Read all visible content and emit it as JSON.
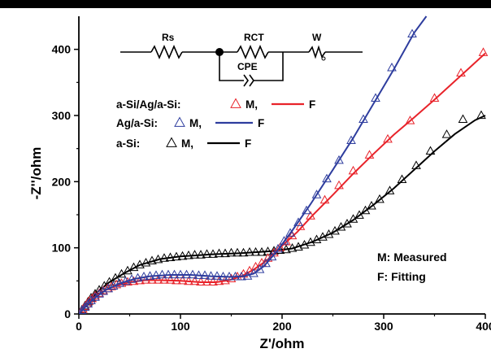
{
  "chart_data": {
    "type": "scatter",
    "xlabel": "Z'/ohm",
    "ylabel": "-Z''/ohm",
    "xlim": [
      0,
      400
    ],
    "ylim": [
      0,
      450
    ],
    "xticks": [
      0,
      100,
      200,
      300,
      400
    ],
    "yticks": [
      0,
      100,
      200,
      300,
      400
    ],
    "marker": "open-triangle",
    "series": [
      {
        "name": "a-Si/Ag/a-Si",
        "color": "#e8232a",
        "measured": [
          [
            2,
            3
          ],
          [
            4,
            7
          ],
          [
            6,
            11
          ],
          [
            8,
            15
          ],
          [
            10,
            19
          ],
          [
            13,
            23
          ],
          [
            16,
            27
          ],
          [
            20,
            31
          ],
          [
            24,
            35
          ],
          [
            28,
            38
          ],
          [
            32,
            41
          ],
          [
            37,
            44
          ],
          [
            42,
            46
          ],
          [
            48,
            48
          ],
          [
            54,
            49
          ],
          [
            60,
            50
          ],
          [
            66,
            51
          ],
          [
            72,
            51
          ],
          [
            78,
            51
          ],
          [
            84,
            51
          ],
          [
            90,
            51
          ],
          [
            96,
            50
          ],
          [
            102,
            50
          ],
          [
            108,
            49
          ],
          [
            114,
            49
          ],
          [
            120,
            48
          ],
          [
            126,
            48
          ],
          [
            132,
            48
          ],
          [
            138,
            49
          ],
          [
            144,
            50
          ],
          [
            150,
            53
          ],
          [
            156,
            56
          ],
          [
            162,
            60
          ],
          [
            168,
            65
          ],
          [
            174,
            71
          ],
          [
            180,
            77
          ],
          [
            186,
            84
          ],
          [
            192,
            92
          ],
          [
            198,
            100
          ],
          [
            204,
            109
          ],
          [
            210,
            118
          ],
          [
            218,
            132
          ],
          [
            228,
            148
          ],
          [
            242,
            172
          ],
          [
            256,
            194
          ],
          [
            270,
            216
          ],
          [
            286,
            240
          ],
          [
            304,
            264
          ],
          [
            326,
            292
          ],
          [
            350,
            326
          ],
          [
            376,
            364
          ],
          [
            398,
            395
          ]
        ],
        "fit": [
          [
            0,
            0
          ],
          [
            5,
            9
          ],
          [
            12,
            21
          ],
          [
            22,
            33
          ],
          [
            35,
            42
          ],
          [
            50,
            48
          ],
          [
            65,
            51
          ],
          [
            80,
            51
          ],
          [
            100,
            50
          ],
          [
            120,
            48
          ],
          [
            135,
            48
          ],
          [
            148,
            51
          ],
          [
            160,
            57
          ],
          [
            172,
            67
          ],
          [
            185,
            81
          ],
          [
            200,
            103
          ],
          [
            215,
            124
          ],
          [
            230,
            149
          ],
          [
            250,
            180
          ],
          [
            270,
            212
          ],
          [
            290,
            242
          ],
          [
            310,
            271
          ],
          [
            330,
            297
          ],
          [
            350,
            324
          ],
          [
            370,
            352
          ],
          [
            385,
            373
          ],
          [
            400,
            394
          ]
        ]
      },
      {
        "name": "Ag/a-Si",
        "color": "#2e3d9e",
        "measured": [
          [
            3,
            5
          ],
          [
            6,
            10
          ],
          [
            9,
            15
          ],
          [
            12,
            20
          ],
          [
            16,
            25
          ],
          [
            20,
            30
          ],
          [
            24,
            34
          ],
          [
            29,
            38
          ],
          [
            34,
            42
          ],
          [
            40,
            46
          ],
          [
            46,
            49
          ],
          [
            52,
            52
          ],
          [
            58,
            54
          ],
          [
            64,
            56
          ],
          [
            70,
            57
          ],
          [
            76,
            58
          ],
          [
            82,
            59
          ],
          [
            88,
            59
          ],
          [
            94,
            59
          ],
          [
            100,
            59
          ],
          [
            106,
            59
          ],
          [
            112,
            59
          ],
          [
            118,
            58
          ],
          [
            124,
            58
          ],
          [
            130,
            57
          ],
          [
            136,
            57
          ],
          [
            142,
            56
          ],
          [
            148,
            56
          ],
          [
            154,
            56
          ],
          [
            160,
            56
          ],
          [
            166,
            57
          ],
          [
            172,
            61
          ],
          [
            178,
            67
          ],
          [
            184,
            76
          ],
          [
            190,
            86
          ],
          [
            196,
            98
          ],
          [
            202,
            110
          ],
          [
            208,
            122
          ],
          [
            216,
            138
          ],
          [
            224,
            156
          ],
          [
            234,
            180
          ],
          [
            244,
            204
          ],
          [
            256,
            232
          ],
          [
            268,
            262
          ],
          [
            280,
            294
          ],
          [
            292,
            326
          ],
          [
            308,
            372
          ],
          [
            328,
            423
          ]
        ],
        "fit": [
          [
            0,
            0
          ],
          [
            6,
            10
          ],
          [
            14,
            22
          ],
          [
            26,
            36
          ],
          [
            40,
            46
          ],
          [
            55,
            53
          ],
          [
            70,
            57
          ],
          [
            90,
            59
          ],
          [
            110,
            59
          ],
          [
            130,
            57
          ],
          [
            150,
            56
          ],
          [
            162,
            57
          ],
          [
            172,
            61
          ],
          [
            182,
            72
          ],
          [
            195,
            95
          ],
          [
            210,
            126
          ],
          [
            228,
            166
          ],
          [
            250,
            218
          ],
          [
            270,
            266
          ],
          [
            290,
            318
          ],
          [
            310,
            370
          ],
          [
            330,
            425
          ],
          [
            342,
            450
          ]
        ]
      },
      {
        "name": "a-Si",
        "color": "#000000",
        "measured": [
          [
            3,
            6
          ],
          [
            6,
            12
          ],
          [
            9,
            18
          ],
          [
            12,
            24
          ],
          [
            16,
            30
          ],
          [
            20,
            36
          ],
          [
            25,
            42
          ],
          [
            30,
            48
          ],
          [
            36,
            54
          ],
          [
            42,
            60
          ],
          [
            48,
            65
          ],
          [
            54,
            70
          ],
          [
            60,
            74
          ],
          [
            66,
            77
          ],
          [
            72,
            80
          ],
          [
            78,
            82
          ],
          [
            84,
            84
          ],
          [
            90,
            85
          ],
          [
            96,
            86
          ],
          [
            102,
            87
          ],
          [
            108,
            88
          ],
          [
            114,
            89
          ],
          [
            120,
            89
          ],
          [
            126,
            90
          ],
          [
            132,
            90
          ],
          [
            138,
            91
          ],
          [
            144,
            91
          ],
          [
            150,
            92
          ],
          [
            156,
            92
          ],
          [
            162,
            92
          ],
          [
            168,
            93
          ],
          [
            174,
            93
          ],
          [
            180,
            93
          ],
          [
            186,
            94
          ],
          [
            192,
            95
          ],
          [
            198,
            96
          ],
          [
            204,
            97
          ],
          [
            210,
            99
          ],
          [
            216,
            101
          ],
          [
            222,
            104
          ],
          [
            228,
            108
          ],
          [
            234,
            112
          ],
          [
            240,
            116
          ],
          [
            246,
            120
          ],
          [
            252,
            125
          ],
          [
            258,
            131
          ],
          [
            264,
            136
          ],
          [
            270,
            143
          ],
          [
            276,
            149
          ],
          [
            282,
            156
          ],
          [
            288,
            163
          ],
          [
            296,
            173
          ],
          [
            306,
            186
          ],
          [
            318,
            203
          ],
          [
            332,
            224
          ],
          [
            346,
            246
          ],
          [
            362,
            271
          ],
          [
            378,
            294
          ],
          [
            396,
            300
          ]
        ],
        "fit": [
          [
            0,
            0
          ],
          [
            8,
            15
          ],
          [
            18,
            33
          ],
          [
            30,
            48
          ],
          [
            45,
            62
          ],
          [
            60,
            74
          ],
          [
            80,
            83
          ],
          [
            100,
            87
          ],
          [
            130,
            90
          ],
          [
            160,
            92
          ],
          [
            190,
            95
          ],
          [
            210,
            99
          ],
          [
            230,
            109
          ],
          [
            250,
            123
          ],
          [
            270,
            142
          ],
          [
            290,
            165
          ],
          [
            310,
            190
          ],
          [
            330,
            218
          ],
          [
            350,
            246
          ],
          [
            370,
            272
          ],
          [
            390,
            293
          ],
          [
            400,
            300
          ]
        ]
      }
    ],
    "legend": {
      "position": "upper-left",
      "entries": [
        {
          "label": "a-Si/Ag/a-Si:",
          "m": "M,",
          "f": "F",
          "color": "#e8232a"
        },
        {
          "label": "Ag/a-Si:",
          "m": "M,",
          "f": "F",
          "color": "#2e3d9e"
        },
        {
          "label": "a-Si:",
          "m": "M,",
          "f": "F",
          "color": "#000000"
        }
      ]
    },
    "annotations": [
      "M: Measured",
      "F: Fitting"
    ],
    "circuit": {
      "rs": "Rs",
      "rct": "RCT",
      "w": "W",
      "cpe": "CPE"
    }
  }
}
